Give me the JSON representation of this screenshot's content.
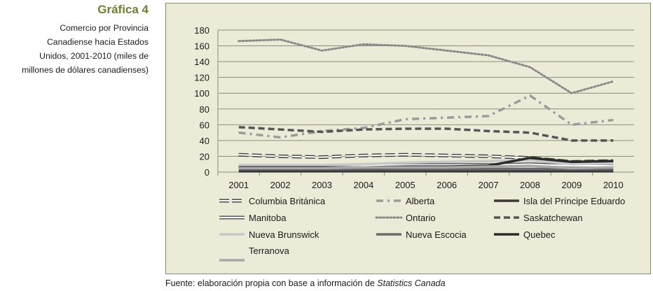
{
  "figure": {
    "label": "Gráfica 4",
    "description": "Comercio por Provincia Canadiense hacia Estados Unidos, 2001-2010 (miles de millones de dólares canadienses)",
    "description_lines": [
      "Comercio por Provincia",
      "Canadiense hacia Estados",
      "Unidos, 2001-2010 (miles de",
      "millones de dólares canadienses)"
    ],
    "source_prefix": "Fuente: elaboración propia con base a información de ",
    "source_italic": "Statistics Canada"
  },
  "chart_data": {
    "type": "line",
    "x": [
      2001,
      2002,
      2003,
      2004,
      2005,
      2006,
      2007,
      2008,
      2009,
      2010
    ],
    "ylim": [
      0,
      180
    ],
    "yticks": [
      0,
      20,
      40,
      60,
      80,
      100,
      120,
      140,
      160,
      180
    ],
    "grid": true,
    "legend_position": "bottom",
    "series": [
      {
        "name": "Columbia Británica",
        "values": [
          22,
          20,
          19,
          21,
          22,
          21,
          20,
          18,
          13,
          14
        ],
        "style": "hollow-dash",
        "color": "#3a3a3a"
      },
      {
        "name": "Alberta",
        "values": [
          50,
          44,
          52,
          56,
          67,
          69,
          71,
          97,
          60,
          66
        ],
        "style": "dashdot",
        "color": "#9b9b9b"
      },
      {
        "name": "Isla del Príncipe Eduardo",
        "values": [
          1,
          1,
          1,
          1,
          1,
          1,
          1,
          1,
          1,
          1
        ],
        "style": "solid",
        "color": "#3a3a3a"
      },
      {
        "name": "Manitoba",
        "values": [
          8,
          8,
          8,
          8,
          9,
          9,
          9,
          10,
          8,
          8
        ],
        "style": "hollow-solid",
        "color": "#4a4a4a"
      },
      {
        "name": "Ontario",
        "values": [
          166,
          168,
          154,
          162,
          160,
          154,
          148,
          133,
          100,
          115
        ],
        "style": "dotted",
        "color": "#8a8a8a"
      },
      {
        "name": "Saskatchewan",
        "values": [
          57,
          54,
          51,
          54,
          55,
          55,
          52,
          50,
          40,
          40
        ],
        "style": "dashed",
        "color": "#555555"
      },
      {
        "name": "Nueva Brunswick",
        "values": [
          9,
          9,
          9,
          10,
          12,
          13,
          14,
          15,
          10,
          11
        ],
        "style": "solid",
        "color": "#c8c8c8"
      },
      {
        "name": "Nueva Escocia",
        "values": [
          4,
          4,
          4,
          4,
          4,
          4,
          4,
          4,
          4,
          4
        ],
        "style": "solid",
        "color": "#6a6a6a"
      },
      {
        "name": "Quebec",
        "values": [
          6,
          6,
          6,
          6,
          7,
          7,
          8,
          18,
          13,
          14
        ],
        "style": "solid",
        "color": "#2b2b2b"
      },
      {
        "name": "Terranova",
        "values": [
          5,
          5,
          5,
          6,
          6,
          6,
          7,
          8,
          5,
          6
        ],
        "style": "solid",
        "color": "#a8a8a8"
      }
    ]
  }
}
